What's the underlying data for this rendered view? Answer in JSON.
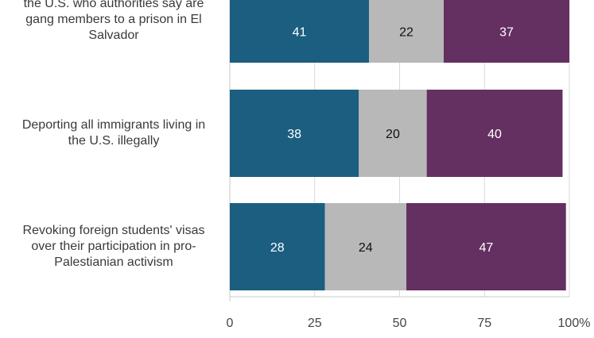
{
  "chart_data": {
    "type": "bar",
    "orientation": "horizontal",
    "stacked": true,
    "categories": [
      "the U.S. who authorities say are\ngang members to a prison in El\nSalvador",
      "Deporting all immigrants living in\nthe U.S. illegally",
      "Revoking foreign students' visas\nover their participation in pro-\nPalestianian activism"
    ],
    "series": [
      {
        "values": [
          41,
          38,
          28
        ],
        "color": "#1b5e80",
        "label_color": "#ffffff"
      },
      {
        "values": [
          22,
          20,
          24
        ],
        "color": "#b8b8b8",
        "label_color": "#111111"
      },
      {
        "values": [
          37,
          40,
          47
        ],
        "color": "#642f61",
        "label_color": "#ffffff"
      }
    ],
    "x_ticks": [
      "0",
      "25",
      "50",
      "75",
      "100%"
    ],
    "xlim": [
      0,
      100
    ],
    "grid": true,
    "legend": "none"
  }
}
